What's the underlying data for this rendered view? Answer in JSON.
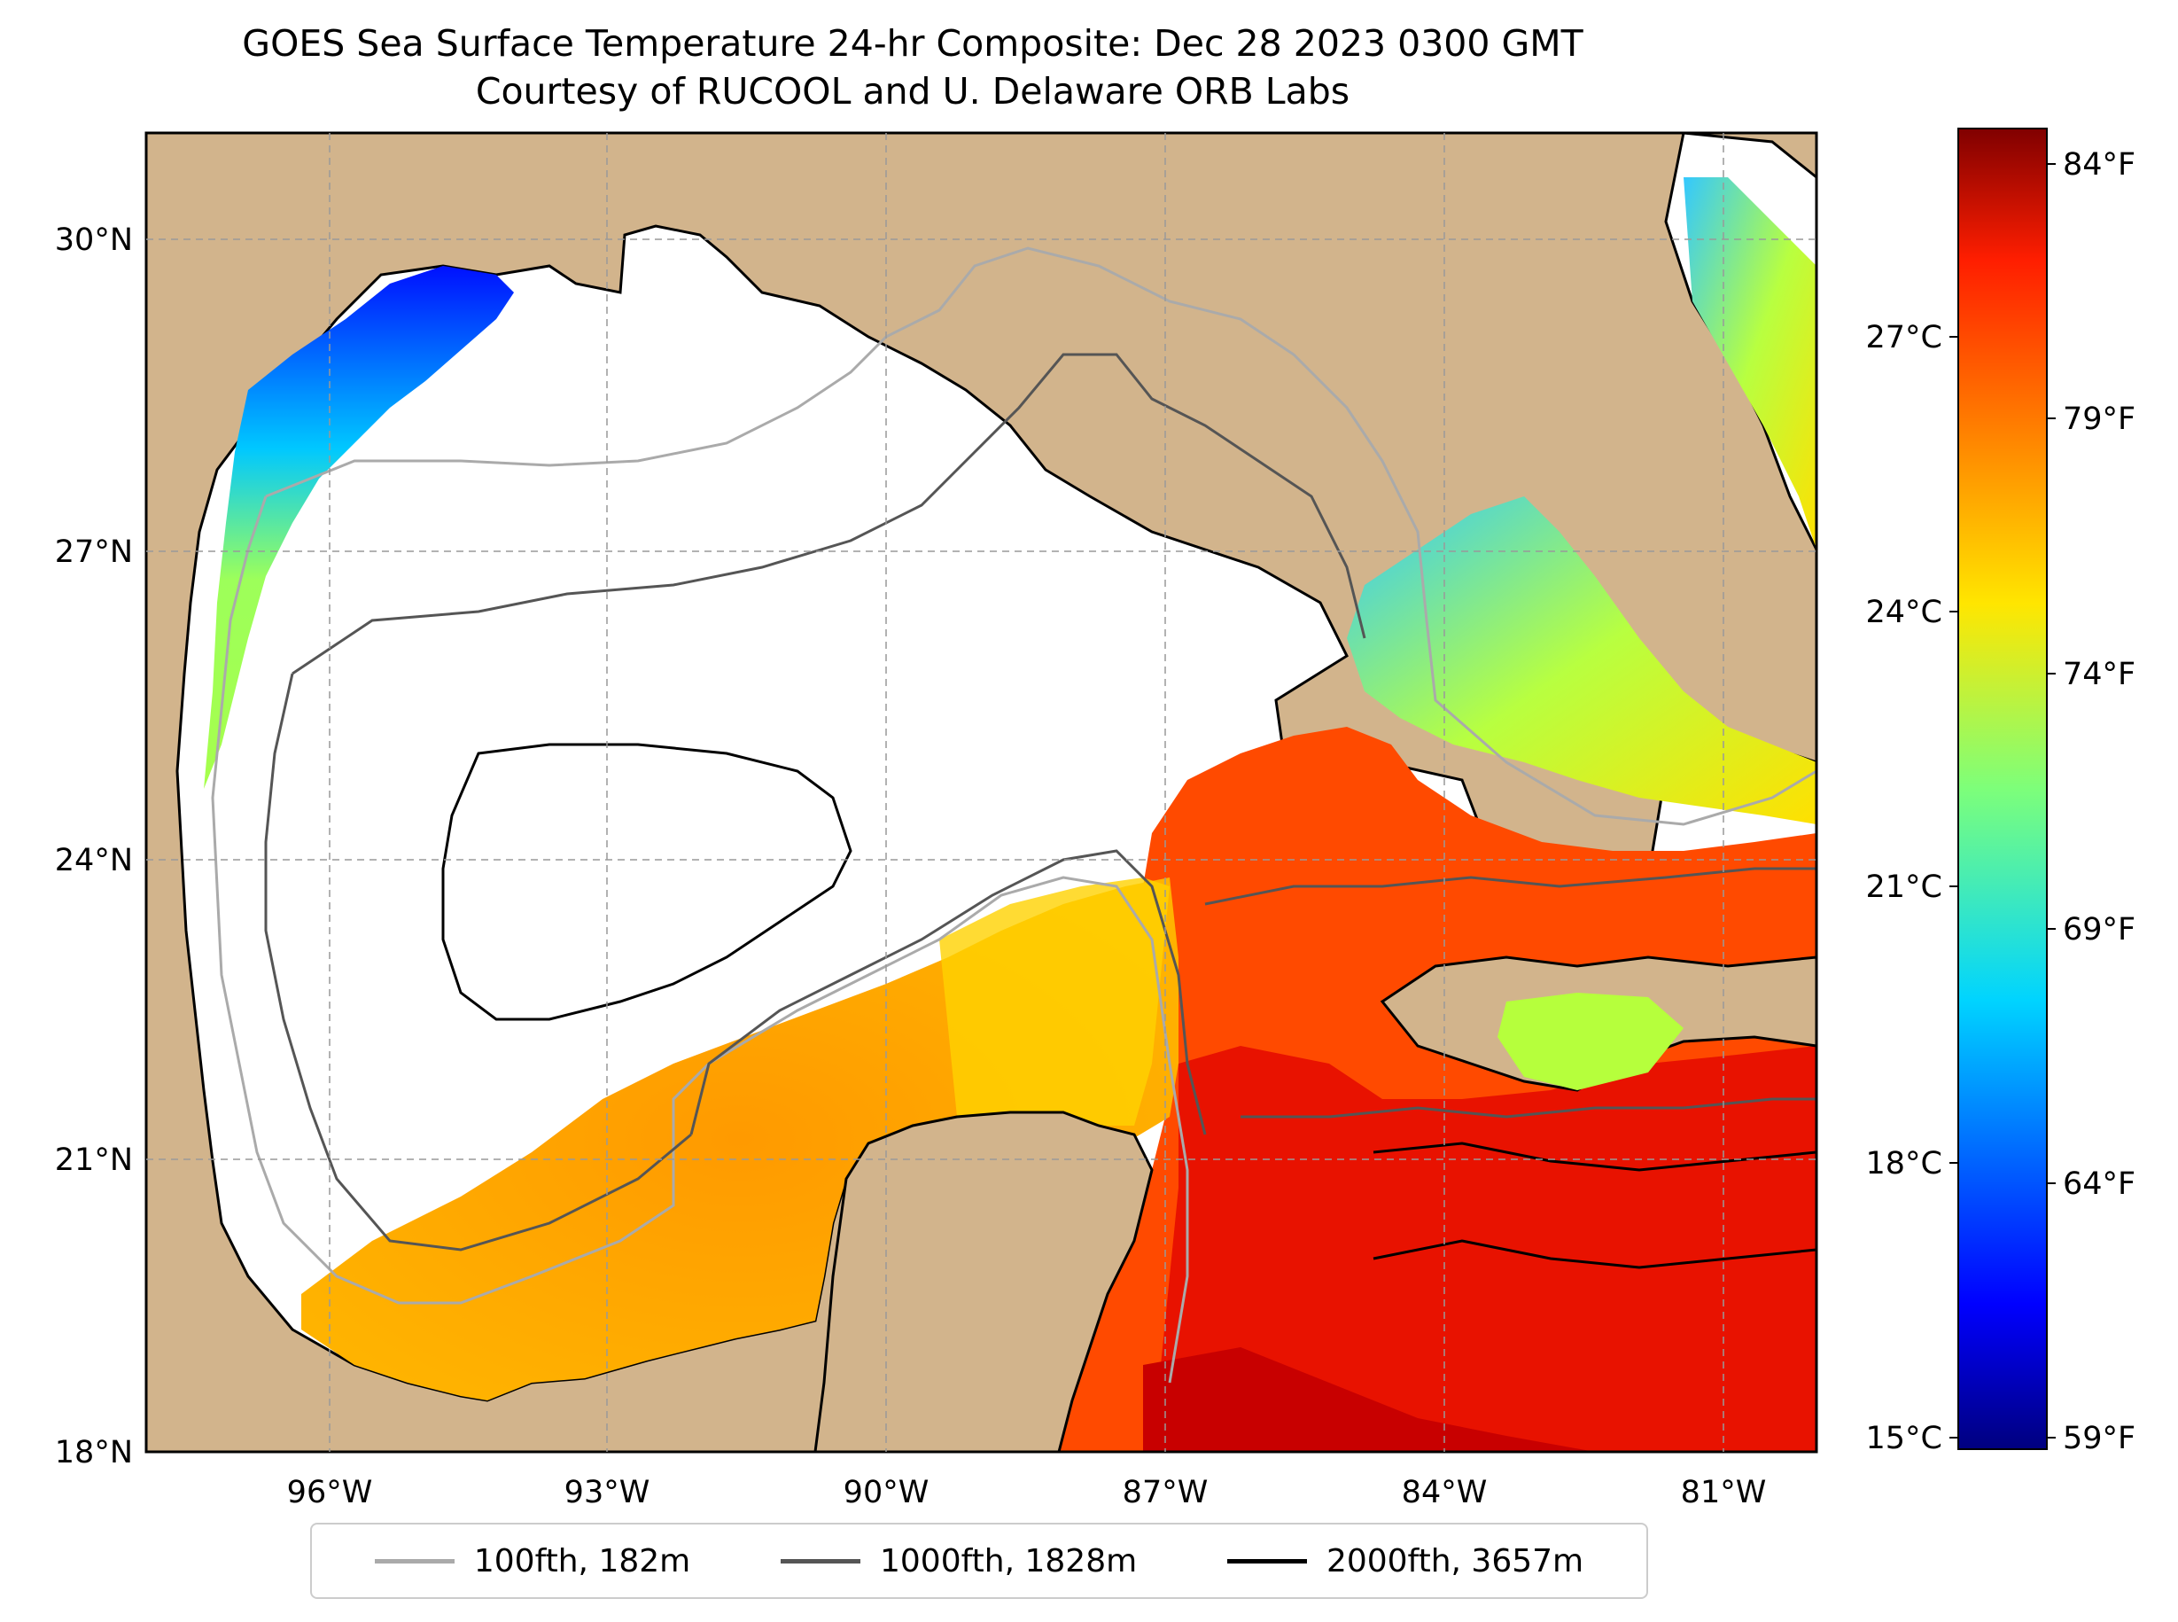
{
  "title": {
    "line1": "GOES Sea Surface Temperature 24-hr Composite: Dec 28 2023 0300 GMT",
    "line2": "Courtesy of RUCOOL and U. Delaware ORB Labs"
  },
  "map": {
    "lat_labels": [
      "30°N",
      "27°N",
      "24°N",
      "21°N",
      "18°N"
    ],
    "lon_labels": [
      "96°W",
      "93°W",
      "90°W",
      "87°W",
      "84°W",
      "81°W"
    ],
    "land_color": "#d2b48c",
    "water_nodata_color": "#ffffff"
  },
  "colorbar": {
    "celsius_labels": [
      "27°C",
      "24°C",
      "21°C",
      "18°C",
      "15°C"
    ],
    "fahrenheit_labels": [
      "84°F",
      "79°F",
      "74°F",
      "69°F",
      "64°F",
      "59°F"
    ],
    "colormap": "jet"
  },
  "legend": {
    "items": [
      {
        "label": "100fth, 182m",
        "color": "#aaaaaa"
      },
      {
        "label": "1000fth, 1828m",
        "color": "#555555"
      },
      {
        "label": "2000fth, 3657m",
        "color": "#000000"
      }
    ]
  }
}
